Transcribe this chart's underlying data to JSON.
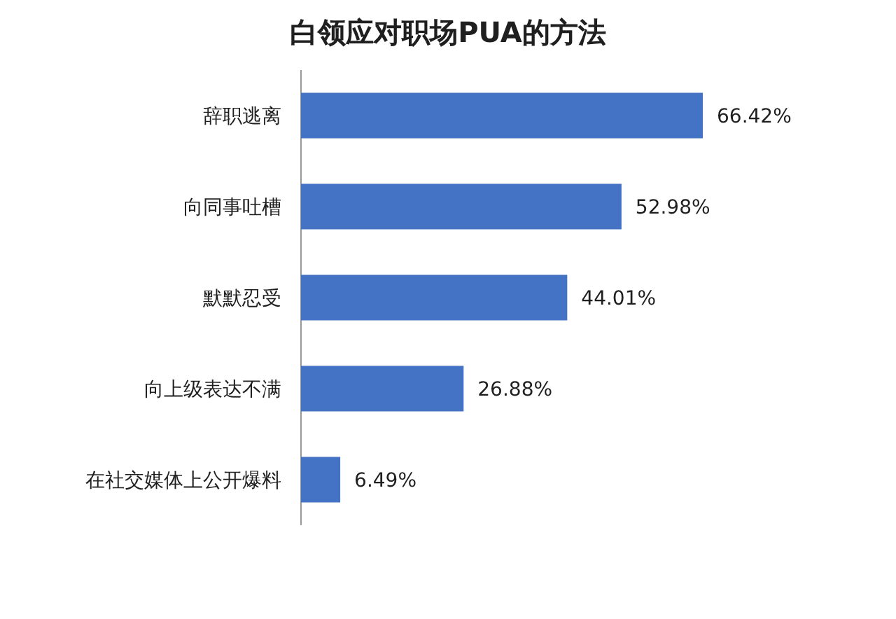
{
  "chart_data": {
    "type": "bar",
    "orientation": "horizontal",
    "title": "白领应对职场PUA的方法",
    "categories": [
      "辞职逃离",
      "向同事吐槽",
      "默默忍受",
      "向上级表达不满",
      "在社交媒体上公开爆料"
    ],
    "values": [
      66.42,
      52.98,
      44.01,
      26.88,
      6.49
    ],
    "value_labels": [
      "66.42%",
      "52.98%",
      "44.01%",
      "26.88%",
      "6.49%"
    ],
    "color": "#4472c4"
  }
}
